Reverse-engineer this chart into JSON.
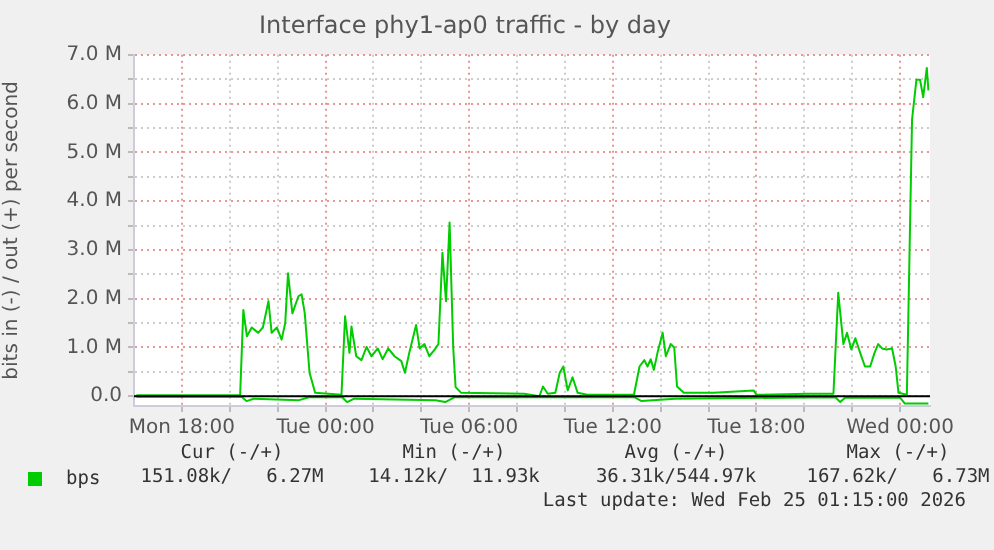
{
  "chart_data": {
    "type": "line",
    "title": "Interface phy1-ap0 traffic - by day",
    "ylabel": "bits in (-) / out (+) per second",
    "xlim": [
      "2026-02-23T16:00",
      "2026-02-25T01:15"
    ],
    "xticks": [
      {
        "value": "2026-02-23T18:00",
        "label": "Mon 18:00"
      },
      {
        "value": "2026-02-23T20:00",
        "label": null
      },
      {
        "value": "2026-02-23T22:00",
        "label": null
      },
      {
        "value": "2026-02-24T00:00",
        "label": "Tue 00:00"
      },
      {
        "value": "2026-02-24T02:00",
        "label": null
      },
      {
        "value": "2026-02-24T04:00",
        "label": null
      },
      {
        "value": "2026-02-24T06:00",
        "label": "Tue 06:00"
      },
      {
        "value": "2026-02-24T08:00",
        "label": null
      },
      {
        "value": "2026-02-24T10:00",
        "label": null
      },
      {
        "value": "2026-02-24T12:00",
        "label": "Tue 12:00"
      },
      {
        "value": "2026-02-24T14:00",
        "label": null
      },
      {
        "value": "2026-02-24T16:00",
        "label": null
      },
      {
        "value": "2026-02-24T18:00",
        "label": "Tue 18:00"
      },
      {
        "value": "2026-02-24T20:00",
        "label": null
      },
      {
        "value": "2026-02-24T22:00",
        "label": null
      },
      {
        "value": "2026-02-25T00:00",
        "label": "Wed 00:00"
      }
    ],
    "ylim": [
      -0.2,
      7.0
    ],
    "yticks": [
      {
        "value": 0,
        "label": "0.0"
      },
      {
        "value": 0.5,
        "label": null
      },
      {
        "value": 1,
        "label": "1.0 M"
      },
      {
        "value": 1.5,
        "label": null
      },
      {
        "value": 2,
        "label": "2.0 M"
      },
      {
        "value": 2.5,
        "label": null
      },
      {
        "value": 3,
        "label": "3.0 M"
      },
      {
        "value": 3.5,
        "label": null
      },
      {
        "value": 4,
        "label": "4.0 M"
      },
      {
        "value": 4.5,
        "label": null
      },
      {
        "value": 5,
        "label": "5.0 M"
      },
      {
        "value": 5.5,
        "label": null
      },
      {
        "value": 6,
        "label": "6.0 M"
      },
      {
        "value": 6.5,
        "label": null
      },
      {
        "value": 7,
        "label": "7.0 M"
      }
    ],
    "grid": true,
    "legend": "bottom left",
    "marker": "none",
    "line_style": "solid",
    "ref_lines": [
      {
        "axis": "y",
        "value": 0,
        "color": "#000000"
      }
    ],
    "annotations": [
      "Cur (-/+)",
      "Min (-/+)",
      "Avg (-/+)",
      "Max (-/+)",
      "151.08k/   6.27M",
      "14.12k/  11.93k",
      "36.31k/544.97k",
      "167.62k/   6.73M",
      "Last update: Wed Feb 25 01:15:00 2026"
    ],
    "series": [
      {
        "name": "bps",
        "color": "#00cc00",
        "x": [
          "2026-02-23T16:06",
          "2026-02-23T20:26",
          "2026-02-23T20:34",
          "2026-02-23T20:43",
          "2026-02-23T20:55",
          "2026-02-23T21:11",
          "2026-02-23T21:23",
          "2026-02-23T21:37",
          "2026-02-23T21:45",
          "2026-02-23T21:58",
          "2026-02-23T22:10",
          "2026-02-23T22:19",
          "2026-02-23T22:26",
          "2026-02-23T22:37",
          "2026-02-23T22:52",
          "2026-02-23T23:00",
          "2026-02-23T23:08",
          "2026-02-23T23:20",
          "2026-02-23T23:34",
          "2026-02-24T00:40",
          "2026-02-24T00:49",
          "2026-02-24T01:00",
          "2026-02-24T01:05",
          "2026-02-24T01:17",
          "2026-02-24T01:30",
          "2026-02-24T01:43",
          "2026-02-24T01:55",
          "2026-02-24T02:11",
          "2026-02-24T02:23",
          "2026-02-24T02:37",
          "2026-02-24T02:53",
          "2026-02-24T03:10",
          "2026-02-24T03:19",
          "2026-02-24T03:30",
          "2026-02-24T03:47",
          "2026-02-24T03:56",
          "2026-02-24T04:08",
          "2026-02-24T04:20",
          "2026-02-24T04:34",
          "2026-02-24T04:43",
          "2026-02-24T04:53",
          "2026-02-24T05:02",
          "2026-02-24T05:11",
          "2026-02-24T05:20",
          "2026-02-24T05:26",
          "2026-02-24T05:40",
          "2026-02-24T08:18",
          "2026-02-24T08:56",
          "2026-02-24T09:05",
          "2026-02-24T09:17",
          "2026-02-24T09:36",
          "2026-02-24T09:47",
          "2026-02-24T09:56",
          "2026-02-24T10:07",
          "2026-02-24T10:19",
          "2026-02-24T10:32",
          "2026-02-24T10:56",
          "2026-02-24T12:53",
          "2026-02-24T13:07",
          "2026-02-24T13:19",
          "2026-02-24T13:27",
          "2026-02-24T13:35",
          "2026-02-24T13:43",
          "2026-02-24T13:52",
          "2026-02-24T14:05",
          "2026-02-24T14:13",
          "2026-02-24T14:25",
          "2026-02-24T14:34",
          "2026-02-24T14:41",
          "2026-02-24T14:58",
          "2026-02-24T16:13",
          "2026-02-24T17:53",
          "2026-02-24T18:00",
          "2026-02-24T20:07",
          "2026-02-24T21:13",
          "2026-02-24T21:25",
          "2026-02-24T21:38",
          "2026-02-24T21:47",
          "2026-02-24T21:58",
          "2026-02-24T22:08",
          "2026-02-24T22:20",
          "2026-02-24T22:32",
          "2026-02-24T22:45",
          "2026-02-24T22:56",
          "2026-02-24T23:05",
          "2026-02-24T23:15",
          "2026-02-24T23:26",
          "2026-02-24T23:40",
          "2026-02-24T23:49",
          "2026-02-24T23:56",
          "2026-02-25T00:17",
          "2026-02-25T00:30",
          "2026-02-25T00:41",
          "2026-02-25T00:50",
          "2026-02-25T00:58",
          "2026-02-25T01:07",
          "2026-02-25T01:11"
        ],
        "values": [
          0.02,
          0.02,
          1.77,
          1.23,
          1.41,
          1.3,
          1.41,
          1.95,
          1.3,
          1.41,
          1.16,
          1.5,
          2.52,
          1.7,
          2.05,
          2.09,
          1.7,
          0.48,
          0.07,
          0.03,
          1.64,
          0.89,
          1.43,
          0.82,
          0.74,
          1.01,
          0.82,
          0.98,
          0.76,
          0.98,
          0.82,
          0.72,
          0.48,
          0.89,
          1.46,
          0.98,
          1.07,
          0.82,
          0.96,
          1.07,
          2.94,
          1.95,
          3.56,
          1.0,
          0.19,
          0.07,
          0.05,
          0.0,
          0.2,
          0.05,
          0.07,
          0.48,
          0.61,
          0.12,
          0.39,
          0.07,
          0.03,
          0.03,
          0.61,
          0.74,
          0.61,
          0.76,
          0.54,
          0.89,
          1.3,
          0.82,
          1.07,
          1.0,
          0.2,
          0.07,
          0.07,
          0.12,
          0.03,
          0.05,
          0.05,
          2.12,
          1.07,
          1.3,
          0.96,
          1.19,
          0.89,
          0.61,
          0.61,
          0.89,
          1.07,
          0.98,
          0.96,
          0.98,
          0.61,
          0.07,
          0.03,
          5.67,
          6.49,
          6.49,
          6.13,
          6.73,
          6.27
        ]
      },
      {
        "color": "#00cc00",
        "x": [
          "2026-02-23T16:06",
          "2026-02-23T20:30",
          "2026-02-23T20:42",
          "2026-02-23T21:00",
          "2026-02-23T22:54",
          "2026-02-23T23:18",
          "2026-02-24T00:42",
          "2026-02-24T00:54",
          "2026-02-24T01:12",
          "2026-02-24T04:36",
          "2026-02-24T05:00",
          "2026-02-24T05:24",
          "2026-02-24T12:54",
          "2026-02-24T13:12",
          "2026-02-24T14:36",
          "2026-02-24T21:18",
          "2026-02-24T21:30",
          "2026-02-24T21:42",
          "2026-02-25T00:00",
          "2026-02-25T00:12",
          "2026-02-25T01:11"
        ],
        "values": [
          -0.01,
          -0.01,
          -0.1,
          -0.05,
          -0.08,
          -0.02,
          -0.02,
          -0.12,
          -0.05,
          -0.08,
          -0.12,
          -0.02,
          -0.02,
          -0.1,
          -0.05,
          -0.02,
          -0.12,
          -0.03,
          -0.03,
          -0.15,
          -0.15
        ]
      }
    ]
  }
}
